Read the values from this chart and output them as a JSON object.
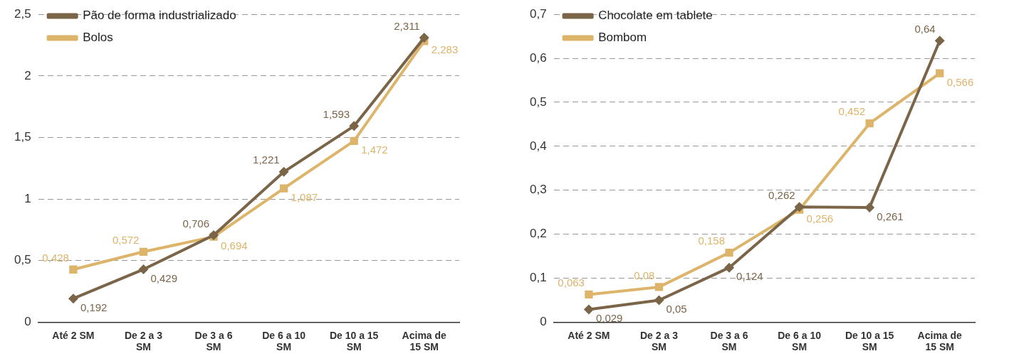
{
  "chart_data": [
    {
      "type": "line",
      "categories": [
        "Até 2 SM",
        "De 2 a 3 SM",
        "De 3 a 6 SM",
        "De 6 a 10 SM",
        "De 10 a 15 SM",
        "Acima de 15 SM"
      ],
      "series": [
        {
          "name": "Pão de forma industrializado",
          "color": "#7b6549",
          "marker": "diamond",
          "values": [
            0.192,
            0.429,
            0.706,
            1.221,
            1.593,
            2.311
          ],
          "value_labels": [
            "0,192",
            "0,429",
            "0,706",
            "1,221",
            "1,593",
            "2,311"
          ]
        },
        {
          "name": "Bolos",
          "color": "#dcb46a",
          "marker": "square",
          "values": [
            0.428,
            0.572,
            0.694,
            1.087,
            1.472,
            2.283
          ],
          "value_labels": [
            "0,428",
            "0,572",
            "0,694",
            "1,087",
            "1,472",
            "2,283"
          ]
        }
      ],
      "ylim": [
        0,
        2.5
      ],
      "yticks": [
        {
          "value": 0,
          "label": "0"
        },
        {
          "value": 0.5,
          "label": "0,5"
        },
        {
          "value": 1,
          "label": "1"
        },
        {
          "value": 1.5,
          "label": "1,5"
        },
        {
          "value": 2,
          "label": "2"
        },
        {
          "value": 2.5,
          "label": "2,5"
        }
      ],
      "grid": "y",
      "legend": "top left",
      "line_style": "solid"
    },
    {
      "type": "line",
      "categories": [
        "Até 2 SM",
        "De 2 a 3 SM",
        "De 3 a 6 SM",
        "De 6 a 10 SM",
        "De 10 a 15 SM",
        "Acima de 15 SM"
      ],
      "series": [
        {
          "name": "Chocolate em tablete",
          "color": "#7b6549",
          "marker": "diamond",
          "values": [
            0.029,
            0.05,
            0.124,
            0.262,
            0.261,
            0.64
          ],
          "value_labels": [
            "0,029",
            "0,05",
            "0,124",
            "0,262",
            "0,261",
            "0,64"
          ]
        },
        {
          "name": "Bombom",
          "color": "#dcb46a",
          "marker": "square",
          "values": [
            0.063,
            0.08,
            0.158,
            0.256,
            0.452,
            0.566
          ],
          "value_labels": [
            "0,063",
            "0,08",
            "0,158",
            "0,256",
            "0,452",
            "0,566"
          ]
        }
      ],
      "ylim": [
        0,
        0.7
      ],
      "yticks": [
        {
          "value": 0,
          "label": "0"
        },
        {
          "value": 0.1,
          "label": "0,1"
        },
        {
          "value": 0.2,
          "label": "0,2"
        },
        {
          "value": 0.3,
          "label": "0,3"
        },
        {
          "value": 0.4,
          "label": "0,4"
        },
        {
          "value": 0.5,
          "label": "0,5"
        },
        {
          "value": 0.6,
          "label": "0,6"
        },
        {
          "value": 0.7,
          "label": "0,7"
        }
      ],
      "grid": "y",
      "legend": "top left",
      "line_style": "solid"
    }
  ]
}
